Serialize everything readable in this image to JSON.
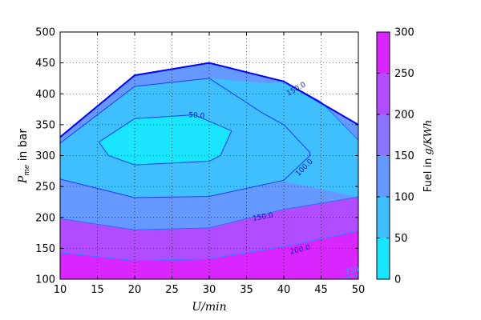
{
  "chart_data": {
    "type": "contour",
    "xlabel": "U/min",
    "ylabel_math": "P",
    "ylabel_sub": "me",
    "ylabel_text": " in bar",
    "xlim": [
      10,
      50
    ],
    "ylim": [
      100,
      500
    ],
    "xticks": [
      "10",
      "15",
      "20",
      "25",
      "30",
      "35",
      "40",
      "45",
      "50"
    ],
    "yticks": [
      "100",
      "150",
      "200",
      "250",
      "300",
      "350",
      "400",
      "450",
      "500"
    ],
    "grid": true,
    "colorbar": {
      "label_text": "Fuel in ",
      "label_math": "g/KWh",
      "range": [
        0,
        300
      ],
      "ticks": [
        "0",
        "50",
        "100",
        "150",
        "200",
        "250",
        "300"
      ],
      "bands": [
        {
          "from": 0,
          "to": 50,
          "color": "#1ae5ff"
        },
        {
          "from": 50,
          "to": 100,
          "color": "#40bfff"
        },
        {
          "from": 100,
          "to": 150,
          "color": "#6699ff"
        },
        {
          "from": 150,
          "to": 200,
          "color": "#8c73ff"
        },
        {
          "from": 200,
          "to": 250,
          "color": "#b24dff"
        },
        {
          "from": 250,
          "to": 300,
          "color": "#d926ff"
        }
      ]
    },
    "boundary": [
      [
        10,
        330
      ],
      [
        20,
        430
      ],
      [
        30,
        450
      ],
      [
        40,
        420
      ],
      [
        50,
        350
      ]
    ],
    "fill_regions": [
      {
        "color": "#d926ff",
        "points": [
          [
            10,
            100
          ],
          [
            10,
            330
          ],
          [
            20,
            430
          ],
          [
            30,
            450
          ],
          [
            40,
            420
          ],
          [
            50,
            350
          ],
          [
            50,
            100
          ]
        ]
      },
      {
        "color": "#b24dff",
        "points": [
          [
            10,
            100
          ],
          [
            10,
            330
          ],
          [
            20,
            430
          ],
          [
            30,
            450
          ],
          [
            40,
            420
          ],
          [
            50,
            350
          ],
          [
            50,
            178
          ],
          [
            40,
            153
          ],
          [
            30,
            133
          ],
          [
            20,
            130
          ],
          [
            10,
            143
          ],
          [
            10,
            100
          ]
        ]
      },
      {
        "color": "#8c73ff",
        "points": [
          [
            10,
            143
          ],
          [
            10,
            330
          ],
          [
            20,
            430
          ],
          [
            30,
            450
          ],
          [
            40,
            420
          ],
          [
            50,
            350
          ],
          [
            50,
            233
          ],
          [
            40,
            213
          ],
          [
            30,
            183
          ],
          [
            20,
            180
          ],
          [
            10,
            198
          ]
        ]
      },
      {
        "color": "#6699ff",
        "points": [
          [
            10,
            198
          ],
          [
            10,
            330
          ],
          [
            20,
            430
          ],
          [
            30,
            450
          ],
          [
            40,
            420
          ],
          [
            50,
            350
          ],
          [
            50,
            325
          ],
          [
            45,
            387
          ],
          [
            40,
            420
          ],
          [
            38,
            417
          ],
          [
            30,
            425
          ],
          [
            20,
            412
          ],
          [
            10,
            320
          ],
          [
            10,
            262
          ],
          [
            20,
            232
          ],
          [
            30,
            234
          ],
          [
            40,
            258
          ],
          [
            50,
            233
          ],
          [
            50,
            325
          ],
          [
            50,
            233
          ],
          [
            40,
            213
          ],
          [
            30,
            183
          ],
          [
            20,
            180
          ],
          [
            10,
            198
          ]
        ]
      },
      {
        "color": "#40bfff",
        "points": [
          [
            10,
            320
          ],
          [
            20,
            412
          ],
          [
            30,
            425
          ],
          [
            38,
            417
          ],
          [
            40,
            420
          ],
          [
            45,
            387
          ],
          [
            50,
            325
          ],
          [
            50,
            233
          ],
          [
            40,
            258
          ],
          [
            30,
            234
          ],
          [
            20,
            232
          ],
          [
            10,
            262
          ]
        ]
      },
      {
        "color": "#40bfff",
        "points": [
          [
            10,
            320
          ],
          [
            20,
            412
          ],
          [
            30,
            425
          ],
          [
            37,
            370
          ],
          [
            40,
            350
          ],
          [
            43.5,
            305
          ],
          [
            43.5,
            303
          ],
          [
            40,
            260
          ],
          [
            30,
            234
          ],
          [
            20,
            232
          ],
          [
            10,
            262
          ]
        ]
      },
      {
        "color": "#1ae5ff",
        "points": [
          [
            15.2,
            322
          ],
          [
            20,
            360
          ],
          [
            28,
            366
          ],
          [
            33,
            340
          ],
          [
            31.5,
            300
          ],
          [
            30,
            291
          ],
          [
            20,
            285
          ],
          [
            16.5,
            300
          ]
        ]
      }
    ],
    "contour_lines": [
      {
        "level": "50.0",
        "color": "#1f3bff",
        "width": 1,
        "points": [
          [
            15.2,
            322
          ],
          [
            20,
            360
          ],
          [
            28,
            366
          ],
          [
            33,
            340
          ],
          [
            31.5,
            300
          ],
          [
            30,
            291
          ],
          [
            20,
            285
          ],
          [
            16.5,
            300
          ],
          [
            15.2,
            322
          ]
        ],
        "label": {
          "x": 28.3,
          "y": 364,
          "angle": 5
        }
      },
      {
        "level": "100.0",
        "color": "#1f3bff",
        "width": 1,
        "points": [
          [
            10,
            320
          ],
          [
            20,
            412
          ],
          [
            30,
            425
          ],
          [
            37,
            370
          ],
          [
            40,
            350
          ],
          [
            43.5,
            305
          ],
          [
            43.5,
            300
          ],
          [
            40,
            260
          ],
          [
            30,
            234
          ],
          [
            20,
            232
          ],
          [
            10,
            262
          ]
        ],
        "label": {
          "x": 42.8,
          "y": 280,
          "angle": -45
        }
      },
      {
        "level": "150.0",
        "color": "#2a6fff",
        "width": 1,
        "points": [
          [
            10,
            198
          ],
          [
            20,
            180
          ],
          [
            30,
            183
          ],
          [
            40,
            213
          ],
          [
            50,
            233
          ]
        ],
        "label": {
          "x": 37.2,
          "y": 200,
          "angle": -10
        }
      },
      {
        "level": "150.0",
        "color": "#2a6fff",
        "width": 1,
        "points": [
          [
            40,
            420
          ],
          [
            45,
            387
          ],
          [
            50,
            325
          ]
        ],
        "label": {
          "x": 41.7,
          "y": 407,
          "angle": -30
        }
      },
      {
        "level": "200.0",
        "color": "#1f8cff",
        "width": 1,
        "points": [
          [
            10,
            143
          ],
          [
            20,
            130
          ],
          [
            30,
            133
          ],
          [
            40,
            153
          ],
          [
            50,
            178
          ]
        ],
        "label": {
          "x": 42.2,
          "y": 147,
          "angle": -14
        }
      },
      {
        "level": "250",
        "color": "#1f9fff",
        "width": 1,
        "points": [
          [
            47.5,
            100
          ],
          [
            50,
            107
          ]
        ],
        "label": {
          "x": 49.2,
          "y": 113,
          "angle": -15
        }
      }
    ]
  }
}
